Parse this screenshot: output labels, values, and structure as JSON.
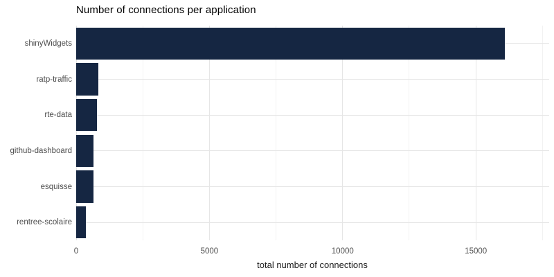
{
  "chart_data": {
    "type": "bar",
    "orientation": "horizontal",
    "title": "Number of connections per application",
    "xlabel": "total number of connections",
    "ylabel": "",
    "categories": [
      "shinyWidgets",
      "ratp-traffic",
      "rte-data",
      "github-dashboard",
      "esquisse",
      "rentree-scolaire"
    ],
    "values": [
      16090,
      825,
      775,
      660,
      640,
      360
    ],
    "xlim": [
      0,
      17750
    ],
    "x_major_ticks": [
      0,
      5000,
      10000,
      15000
    ],
    "x_minor_ticks": [
      2500,
      7500,
      12500,
      17500
    ],
    "grid": true,
    "legend_position": "none",
    "colors": {
      "bar": "#152642",
      "grid_major": "#e6e6e6",
      "grid_minor": "#f2f2f2",
      "axis_text": "#4d4d4d",
      "title_text": "#000000",
      "axis_title_text": "#1a1a1a",
      "background": "#ffffff"
    }
  }
}
